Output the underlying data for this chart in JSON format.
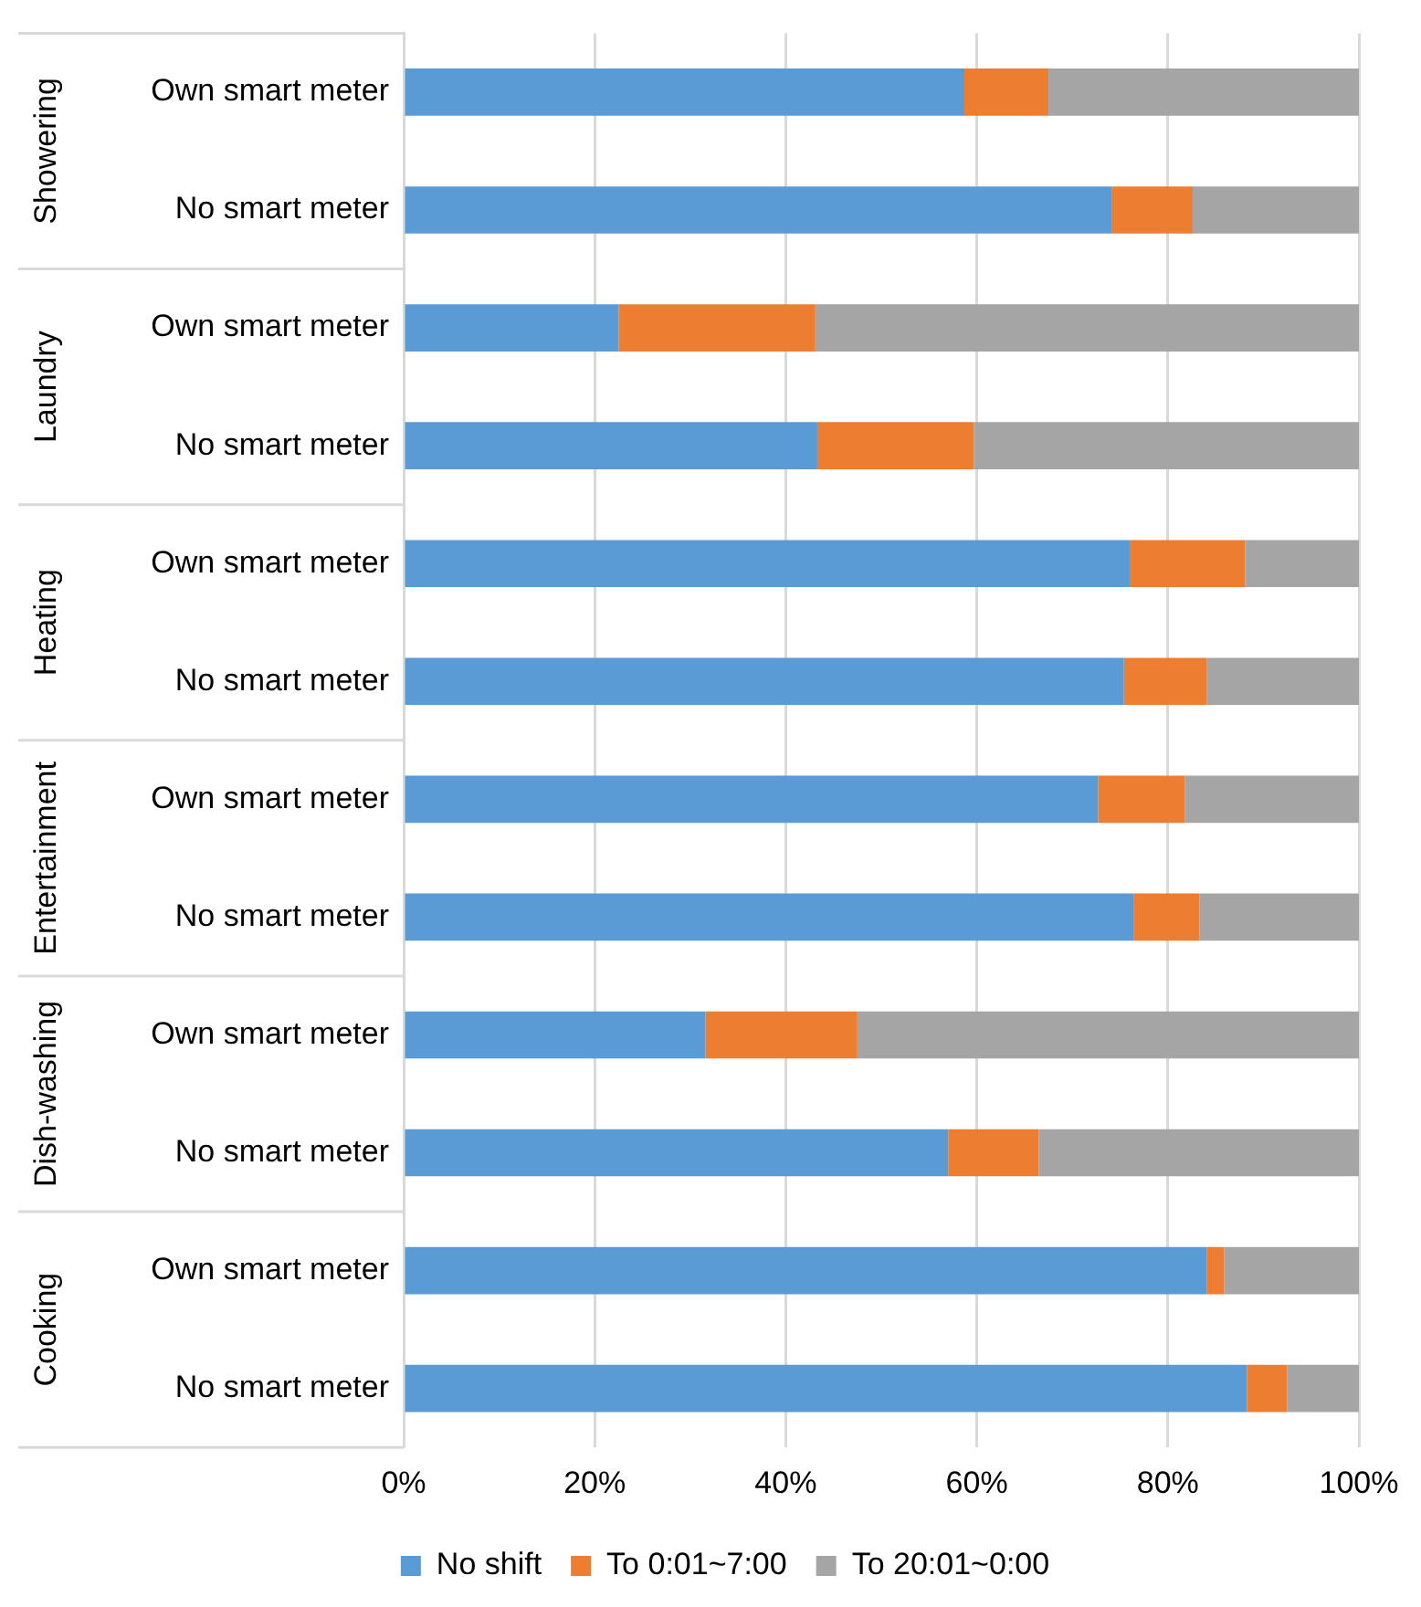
{
  "chart_data": {
    "type": "bar",
    "orientation": "horizontal",
    "stacked": true,
    "categories": [
      "Own smart meter",
      "No smart meter",
      "Own smart meter",
      "No smart meter",
      "Own smart meter",
      "No smart meter",
      "Own smart meter",
      "No smart meter",
      "Own smart meter",
      "No smart meter",
      "Own smart meter",
      "No smart meter"
    ],
    "series": [
      {
        "name": "No shift",
        "color": "#5b9bd5",
        "values": [
          58.7,
          74.1,
          22.5,
          43.3,
          76.0,
          75.4,
          72.7,
          76.4,
          31.6,
          57.0,
          84.1,
          88.3
        ]
      },
      {
        "name": "To 0:01~7:00",
        "color": "#ed7d31",
        "values": [
          8.8,
          8.5,
          20.6,
          16.4,
          12.1,
          8.7,
          9.1,
          6.9,
          15.9,
          9.5,
          1.8,
          4.2
        ]
      },
      {
        "name": "To 20:01~0:00",
        "color": "#a5a5a5",
        "values": [
          32.5,
          17.4,
          56.9,
          40.3,
          11.9,
          15.9,
          18.2,
          16.7,
          52.5,
          33.5,
          14.1,
          7.5
        ]
      }
    ],
    "xlim": [
      0,
      100
    ],
    "xticks": [
      {
        "value": 0,
        "label": "0%"
      },
      {
        "value": 20,
        "label": "20%"
      },
      {
        "value": 40,
        "label": "40%"
      },
      {
        "value": 60,
        "label": "60%"
      },
      {
        "value": 80,
        "label": "80%"
      },
      {
        "value": 100,
        "label": "100%"
      }
    ],
    "grid": "x",
    "legend": "bottom",
    "annotations": [
      "Showering",
      "Laundry",
      "Heating",
      "Entertainment",
      "Dish-washing",
      "Cooking"
    ]
  }
}
